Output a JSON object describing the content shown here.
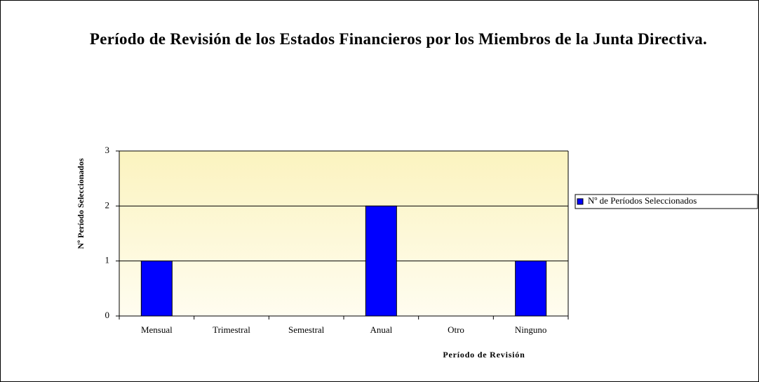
{
  "chart_data": {
    "type": "bar",
    "title": "Período de Revisión de los Estados Financieros por los Miembros de la Junta Directiva.",
    "x_label": "Período de Revisión",
    "y_label": "Nº Período Seleccionados",
    "categories": [
      "Mensual",
      "Trimestral",
      "Semestral",
      "Anual",
      "Otro",
      "Ninguno"
    ],
    "series": [
      {
        "name": "Nº de Períodos Seleccionados",
        "color": "#0000ff",
        "values": [
          1,
          0,
          0,
          2,
          0,
          1
        ]
      }
    ],
    "ylim": [
      0,
      3
    ],
    "yticks": [
      0,
      1,
      2,
      3
    ],
    "grid": true,
    "legend": "right"
  }
}
